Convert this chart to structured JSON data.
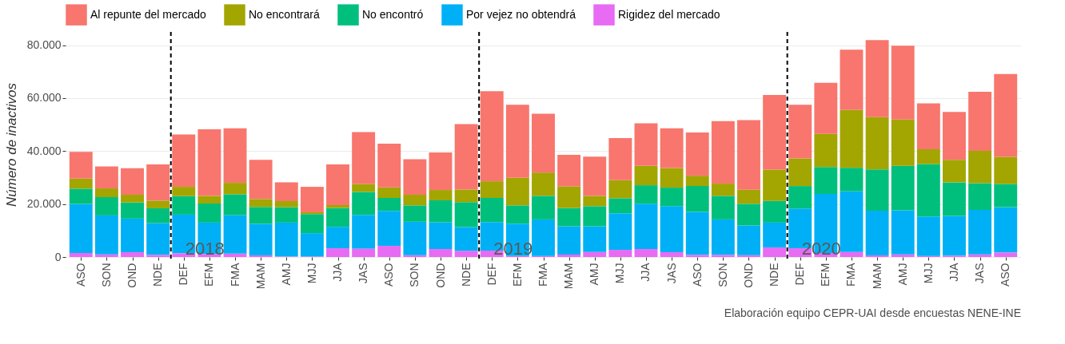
{
  "chart_data": {
    "type": "bar",
    "stacked": true,
    "ylabel": "Número de inactivos",
    "categories": [
      "ASO",
      "SON",
      "OND",
      "NDE",
      "DEF",
      "EFM",
      "FMA",
      "MAM",
      "AMJ",
      "MJJ",
      "JJA",
      "JAS",
      "ASO",
      "SON",
      "OND",
      "NDE",
      "DEF",
      "EFM",
      "FMA",
      "MAM",
      "AMJ",
      "MJJ",
      "JJA",
      "JAS",
      "ASO",
      "SON",
      "OND",
      "NDE",
      "DEF",
      "EFM",
      "FMA",
      "MAM",
      "AMJ",
      "MJJ",
      "JJA",
      "JAS",
      "ASO"
    ],
    "series": [
      {
        "name": "Rigidez del mercado",
        "color": "#e76bf3",
        "values": [
          1500,
          1000,
          1800,
          800,
          1400,
          1100,
          1300,
          600,
          200,
          200,
          3300,
          3200,
          4200,
          700,
          3000,
          2300,
          2400,
          400,
          400,
          900,
          1900,
          2700,
          3000,
          1800,
          800,
          800,
          700,
          3600,
          3300,
          1500,
          1900,
          600,
          1000,
          400,
          500,
          1000,
          1700
        ]
      },
      {
        "name": "Por vejez no obtendrá",
        "color": "#00b0f6",
        "values": [
          18500,
          14700,
          12700,
          12000,
          14600,
          11900,
          14500,
          11900,
          12800,
          8800,
          8100,
          12700,
          13200,
          12600,
          10100,
          9000,
          10800,
          12200,
          13800,
          10700,
          9700,
          13800,
          17100,
          17400,
          16200,
          13400,
          11200,
          9400,
          15000,
          22300,
          22900,
          16900,
          16600,
          14900,
          15000,
          16800,
          17100
        ]
      },
      {
        "name": "No encontró",
        "color": "#00bf7d",
        "values": [
          5800,
          6900,
          6100,
          5600,
          7000,
          7200,
          7900,
          6400,
          5800,
          7200,
          7100,
          8700,
          4900,
          6200,
          8300,
          9400,
          9100,
          6900,
          8900,
          6900,
          7600,
          5700,
          7000,
          7000,
          9800,
          8900,
          8200,
          8200,
          8500,
          10200,
          8900,
          15600,
          16800,
          19800,
          12700,
          10100,
          8800
        ]
      },
      {
        "name": "No encontrará",
        "color": "#a3a500",
        "values": [
          3800,
          3300,
          2900,
          2900,
          3500,
          2900,
          4300,
          3000,
          2300,
          700,
          1100,
          3000,
          4000,
          4000,
          3900,
          4800,
          6300,
          10400,
          8800,
          8200,
          3900,
          6800,
          7300,
          7400,
          3900,
          4600,
          5300,
          11800,
          10400,
          12500,
          21800,
          19700,
          17500,
          5600,
          8500,
          12200,
          10200
        ]
      },
      {
        "name": "Al repunte del mercado",
        "color": "#f8766d",
        "values": [
          10100,
          8300,
          10000,
          13700,
          19800,
          25100,
          20600,
          14800,
          7100,
          9600,
          15400,
          19600,
          16500,
          13400,
          14200,
          24700,
          34000,
          27600,
          22200,
          11900,
          14800,
          15900,
          16100,
          15000,
          16300,
          23600,
          26300,
          28200,
          20300,
          19300,
          22800,
          29100,
          27900,
          17300,
          18100,
          22300,
          31300
        ]
      }
    ],
    "ylim": [
      0,
      85000
    ],
    "yticks": [
      0,
      {
        "value": 20000,
        "label": "20.000"
      },
      {
        "value": 40000,
        "label": "40.000"
      },
      {
        "value": 60000,
        "label": "60.000"
      },
      {
        "value": 80000,
        "label": "80.000"
      }
    ],
    "grid": "y",
    "legend": "top",
    "annotations": [
      "2018",
      "2019",
      "2020",
      "Elaboración equipo CEPR-UAI desde encuestas NENE-INE"
    ]
  }
}
